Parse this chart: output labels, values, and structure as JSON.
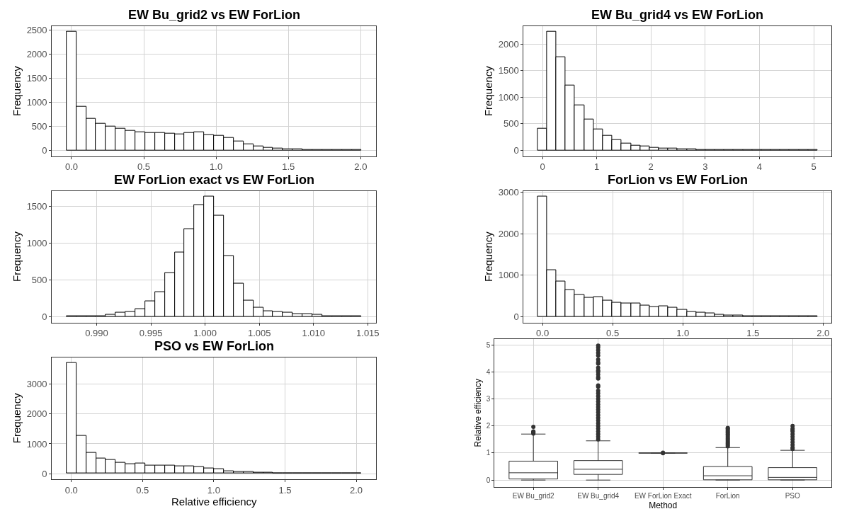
{
  "chart_data": [
    {
      "type": "histogram",
      "title": "EW Bu_grid2 vs EW ForLion",
      "ylabel": "Frequency",
      "grid": true,
      "bins": [
        -0.034,
        0.034,
        0.102,
        0.17,
        0.238,
        0.306,
        0.374,
        0.442,
        0.51,
        0.578,
        0.646,
        0.714,
        0.782,
        0.85,
        0.918,
        0.986,
        1.054,
        1.122,
        1.19,
        1.258,
        1.326,
        1.394,
        1.462,
        1.53,
        1.598,
        1.666,
        1.734,
        1.802,
        1.87,
        1.938,
        2.006
      ],
      "values": [
        2460,
        900,
        650,
        550,
        490,
        450,
        400,
        380,
        360,
        360,
        340,
        330,
        360,
        380,
        320,
        300,
        260,
        190,
        120,
        80,
        50,
        30,
        20,
        20,
        10,
        10,
        10,
        10,
        10,
        10
      ],
      "xlim": [
        -0.136,
        2.108
      ],
      "xticks": [
        {
          "value": 0,
          "label": "0.0"
        },
        0.5,
        {
          "value": 1,
          "label": "1.0"
        },
        1.5,
        {
          "value": 2,
          "label": "2.0"
        }
      ],
      "ylim": [
        -123,
        2583
      ],
      "yticks": [
        0,
        500,
        1000,
        1500,
        2000,
        2500
      ]
    },
    {
      "type": "histogram",
      "title": "EW Bu_grid4 vs EW ForLion",
      "ylabel": "Frequency",
      "grid": true,
      "bins": [
        -0.09,
        0.082,
        0.254,
        0.426,
        0.598,
        0.77,
        0.942,
        1.114,
        1.286,
        1.458,
        1.63,
        1.802,
        1.974,
        2.146,
        2.318,
        2.49,
        2.662,
        2.834,
        3.006,
        3.178,
        3.35,
        3.522,
        3.694,
        3.866,
        4.038,
        4.21,
        4.382,
        4.554,
        4.726,
        4.898,
        5.07
      ],
      "values": [
        410,
        2230,
        1760,
        1220,
        850,
        580,
        400,
        270,
        190,
        130,
        90,
        70,
        50,
        30,
        30,
        20,
        20,
        10,
        10,
        10,
        10,
        10,
        10,
        10,
        10,
        10,
        10,
        10,
        10,
        10
      ],
      "xlim": [
        -0.348,
        5.328
      ],
      "xticks": [
        0,
        1,
        2,
        3,
        4,
        5
      ],
      "ylim": [
        -111.5,
        2341.5
      ],
      "yticks": [
        0,
        500,
        1000,
        1500,
        2000
      ]
    },
    {
      "type": "histogram",
      "title": "EW ForLion exact vs EW ForLion",
      "ylabel": "Frequency",
      "grid": true,
      "bins": [
        0.98722,
        0.98813,
        0.98904,
        0.98994,
        0.99085,
        0.99176,
        0.99266,
        0.99357,
        0.99448,
        0.99538,
        0.99629,
        0.9972,
        0.9981,
        0.99901,
        0.99992,
        1.00083,
        1.00173,
        1.00264,
        1.00355,
        1.00445,
        1.00536,
        1.00627,
        1.00717,
        1.00808,
        1.00899,
        1.00989,
        1.0108,
        1.01171,
        1.01261,
        1.01352,
        1.01443
      ],
      "values": [
        10,
        10,
        10,
        10,
        20,
        50,
        60,
        100,
        210,
        330,
        590,
        870,
        1190,
        1520,
        1630,
        1370,
        820,
        450,
        220,
        120,
        70,
        60,
        50,
        30,
        30,
        20,
        10,
        10,
        10,
        10
      ],
      "xlim": [
        0.98586,
        1.01579
      ],
      "xticks": [
        {
          "value": 0.99,
          "label": "0.990"
        },
        0.995,
        {
          "value": 1,
          "label": "1.000"
        },
        1.005,
        {
          "value": 1.01,
          "label": "1.010"
        },
        1.015
      ],
      "ylim": [
        -81.5,
        1711.5
      ],
      "yticks": [
        0,
        500,
        1000,
        1500
      ]
    },
    {
      "type": "histogram",
      "title": "ForLion vs EW ForLion",
      "ylabel": "Frequency",
      "grid": true,
      "bins": [
        -0.035,
        0.0315,
        0.098,
        0.1645,
        0.231,
        0.2975,
        0.364,
        0.4305,
        0.497,
        0.5635,
        0.63,
        0.6965,
        0.763,
        0.8295,
        0.896,
        0.9625,
        1.029,
        1.0955,
        1.162,
        1.2285,
        1.295,
        1.3615,
        1.428,
        1.4945,
        1.561,
        1.6275,
        1.694,
        1.7605,
        1.827,
        1.8935,
        1.96
      ],
      "values": [
        2890,
        1120,
        840,
        640,
        530,
        460,
        470,
        380,
        340,
        310,
        320,
        270,
        240,
        250,
        210,
        170,
        120,
        100,
        70,
        50,
        30,
        20,
        10,
        10,
        10,
        10,
        10,
        10,
        10,
        10
      ],
      "xlim": [
        -0.135,
        2.06
      ],
      "xticks": [
        {
          "value": 0,
          "label": "0.0"
        },
        0.5,
        {
          "value": 1,
          "label": "1.0"
        },
        1.5,
        {
          "value": 2,
          "label": "2.0"
        }
      ],
      "ylim": [
        -144.5,
        3034.5
      ],
      "yticks": [
        0,
        1000,
        2000,
        3000
      ]
    },
    {
      "type": "histogram",
      "title": "PSO vs EW ForLion",
      "xlabel": "Relative efficiency",
      "ylabel": "Frequency",
      "grid": true,
      "bins": [
        -0.033,
        0.036,
        0.105,
        0.174,
        0.243,
        0.312,
        0.381,
        0.45,
        0.519,
        0.588,
        0.657,
        0.726,
        0.795,
        0.864,
        0.933,
        1.002,
        1.071,
        1.14,
        1.209,
        1.278,
        1.347,
        1.416,
        1.485,
        1.554,
        1.623,
        1.692,
        1.761,
        1.83,
        1.899,
        1.968,
        2.037
      ],
      "values": [
        3720,
        1270,
        700,
        500,
        460,
        360,
        330,
        340,
        280,
        280,
        270,
        240,
        240,
        230,
        180,
        150,
        90,
        60,
        50,
        40,
        30,
        20,
        10,
        10,
        10,
        10,
        10,
        10,
        10,
        10
      ],
      "xlim": [
        -0.137,
        2.141
      ],
      "xticks": [
        {
          "value": 0,
          "label": "0.0"
        },
        0.5,
        {
          "value": 1,
          "label": "1.0"
        },
        1.5,
        {
          "value": 2,
          "label": "2.0"
        }
      ],
      "ylim": [
        -186,
        3906
      ],
      "yticks": [
        0,
        1000,
        2000,
        3000
      ]
    },
    {
      "type": "box",
      "xlabel": "Method",
      "ylabel": "Relative efficiency",
      "grid": true,
      "categories": [
        "EW Bu_grid2",
        "EW Bu_grid4",
        "EW ForLion Exact",
        "ForLion",
        "PSO"
      ],
      "boxes": [
        {
          "low": 0,
          "q1": 0.04,
          "median": 0.27,
          "q3": 0.7,
          "high": 1.7,
          "outliers": [
            1.72,
            1.75,
            1.78,
            1.8,
            1.97
          ]
        },
        {
          "low": 0,
          "q1": 0.21,
          "median": 0.4,
          "q3": 0.72,
          "high": 1.45,
          "outliers": [
            1.5,
            1.6,
            1.7,
            1.8,
            1.9,
            2.0,
            2.1,
            2.2,
            2.3,
            2.4,
            2.5,
            2.6,
            2.7,
            2.8,
            2.9,
            3.0,
            3.1,
            3.2,
            3.3,
            3.45,
            3.5,
            3.75,
            3.8,
            3.9,
            4.0,
            4.05,
            4.15,
            4.3,
            4.35,
            4.45,
            4.6,
            4.7,
            4.8,
            4.9,
            4.97
          ]
        },
        {
          "low": 1,
          "q1": 1,
          "median": 1,
          "q3": 1,
          "high": 1,
          "outliers": [
            0.99,
            1.01
          ]
        },
        {
          "low": 0,
          "q1": 0.01,
          "median": 0.16,
          "q3": 0.5,
          "high": 1.2,
          "outliers": [
            1.25,
            1.3,
            1.35,
            1.4,
            1.45,
            1.5,
            1.55,
            1.6,
            1.65,
            1.7,
            1.75,
            1.8,
            1.85,
            1.9,
            1.93
          ]
        },
        {
          "low": 0,
          "q1": 0.01,
          "median": 0.1,
          "q3": 0.46,
          "high": 1.1,
          "outliers": [
            1.15,
            1.2,
            1.3,
            1.4,
            1.5,
            1.6,
            1.7,
            1.8,
            1.85,
            1.9,
            2.0
          ]
        }
      ],
      "ylim": [
        -0.25,
        5.22
      ],
      "yticks": [
        0,
        1,
        2,
        3,
        4,
        5
      ]
    }
  ]
}
